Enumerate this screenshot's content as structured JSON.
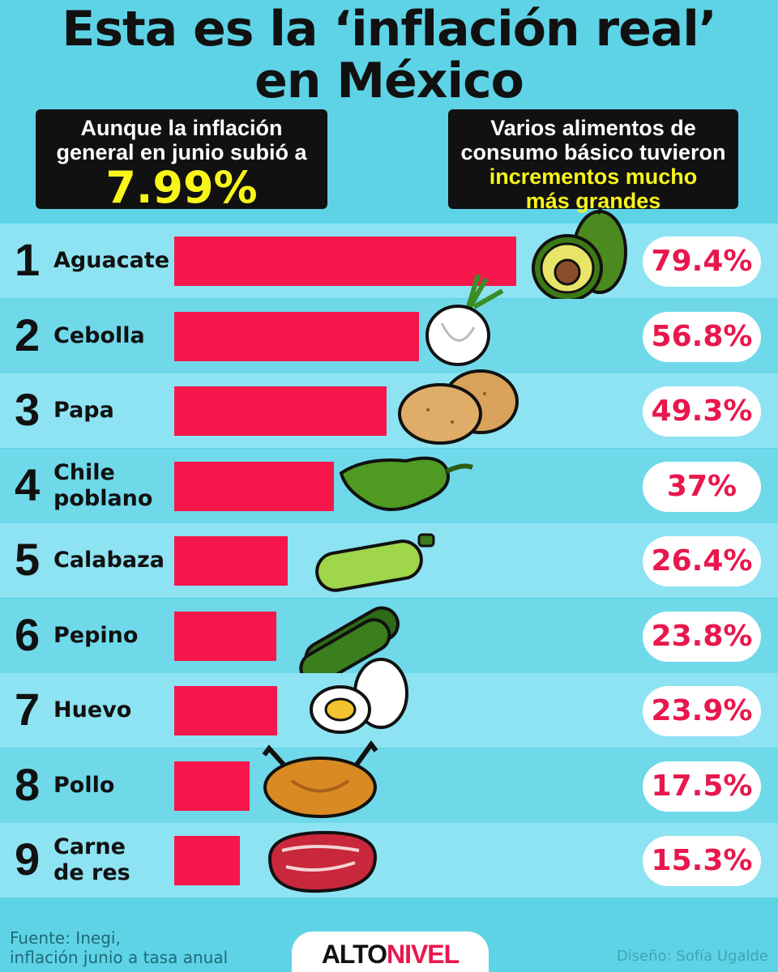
{
  "header": {
    "title_line1": "Esta es la ‘inflación real’",
    "title_line2": "en México"
  },
  "left_box": {
    "line1": "Aunque la inflación",
    "line2": "general en junio subió a",
    "value": "7.99%"
  },
  "right_box": {
    "line1": "Varios alimentos de",
    "line2": "consumo básico tuvieron",
    "line3": "incrementos mucho",
    "line4": "más grandes"
  },
  "chart_data": {
    "type": "bar",
    "orientation": "horizontal",
    "title": "Esta es la ‘inflación real’ en México",
    "categories": [
      "Aguacate",
      "Cebolla",
      "Papa",
      "Chile poblano",
      "Calabaza",
      "Pepino",
      "Huevo",
      "Pollo",
      "Carne de res"
    ],
    "values": [
      79.4,
      56.8,
      49.3,
      37,
      26.4,
      23.8,
      23.9,
      17.5,
      15.3
    ],
    "xlim": [
      0,
      80
    ],
    "items": [
      {
        "rank": "1",
        "name_lines": [
          "Aguacate"
        ],
        "label": "79.4%",
        "value": 79.4,
        "icon": "avocado-icon"
      },
      {
        "rank": "2",
        "name_lines": [
          "Cebolla"
        ],
        "label": "56.8%",
        "value": 56.8,
        "icon": "onion-icon"
      },
      {
        "rank": "3",
        "name_lines": [
          "Papa"
        ],
        "label": "49.3%",
        "value": 49.3,
        "icon": "potato-icon"
      },
      {
        "rank": "4",
        "name_lines": [
          "Chile",
          "poblano"
        ],
        "label": "37%",
        "value": 37,
        "icon": "pepper-icon"
      },
      {
        "rank": "5",
        "name_lines": [
          "Calabaza"
        ],
        "label": "26.4%",
        "value": 26.4,
        "icon": "zucchini-icon"
      },
      {
        "rank": "6",
        "name_lines": [
          "Pepino"
        ],
        "label": "23.8%",
        "value": 23.8,
        "icon": "cucumber-icon"
      },
      {
        "rank": "7",
        "name_lines": [
          "Huevo"
        ],
        "label": "23.9%",
        "value": 23.9,
        "icon": "egg-icon"
      },
      {
        "rank": "8",
        "name_lines": [
          "Pollo"
        ],
        "label": "17.5%",
        "value": 17.5,
        "icon": "chicken-icon"
      },
      {
        "rank": "9",
        "name_lines": [
          "Carne",
          "de res"
        ],
        "label": "15.3%",
        "value": 15.3,
        "icon": "steak-icon"
      }
    ],
    "bar_color": "#f5174b"
  },
  "footer": {
    "source_line1": "Fuente: Inegi,",
    "source_line2": "inflación junio a tasa anual",
    "logo_alto": "ALTO",
    "logo_nivel": "NIVEL",
    "credit": "Diseño: Sofía Ugalde"
  }
}
